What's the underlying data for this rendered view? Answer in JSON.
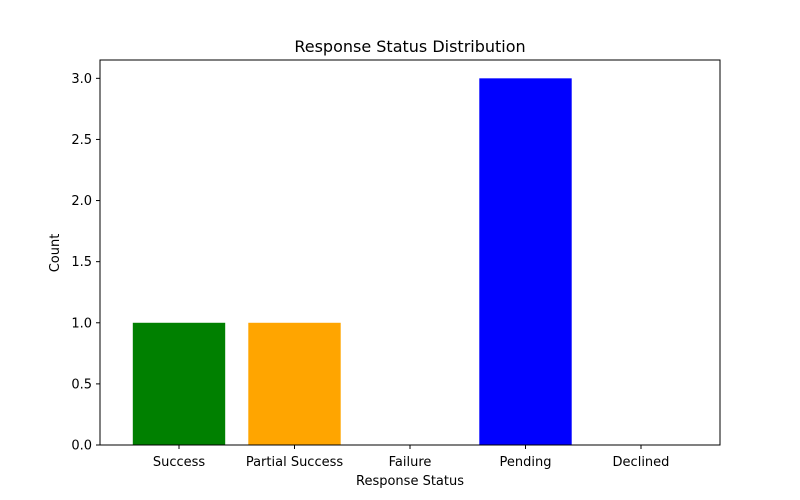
{
  "chart_data": {
    "type": "bar",
    "title": "Response Status Distribution",
    "xlabel": "Response Status",
    "ylabel": "Count",
    "categories": [
      "Success",
      "Partial Success",
      "Failure",
      "Pending",
      "Declined"
    ],
    "values": [
      1,
      1,
      0,
      3,
      0
    ],
    "colors": [
      "#008000",
      "#ffa500",
      "#ff0000",
      "#0000ff",
      "#800080"
    ],
    "ylim": [
      0,
      3.15
    ],
    "yticks": [
      0.0,
      0.5,
      1.0,
      1.5,
      2.0,
      2.5,
      3.0
    ],
    "ytick_labels": [
      "0.0",
      "0.5",
      "1.0",
      "1.5",
      "2.0",
      "2.5",
      "3.0"
    ],
    "grid": false,
    "legend": "none"
  }
}
